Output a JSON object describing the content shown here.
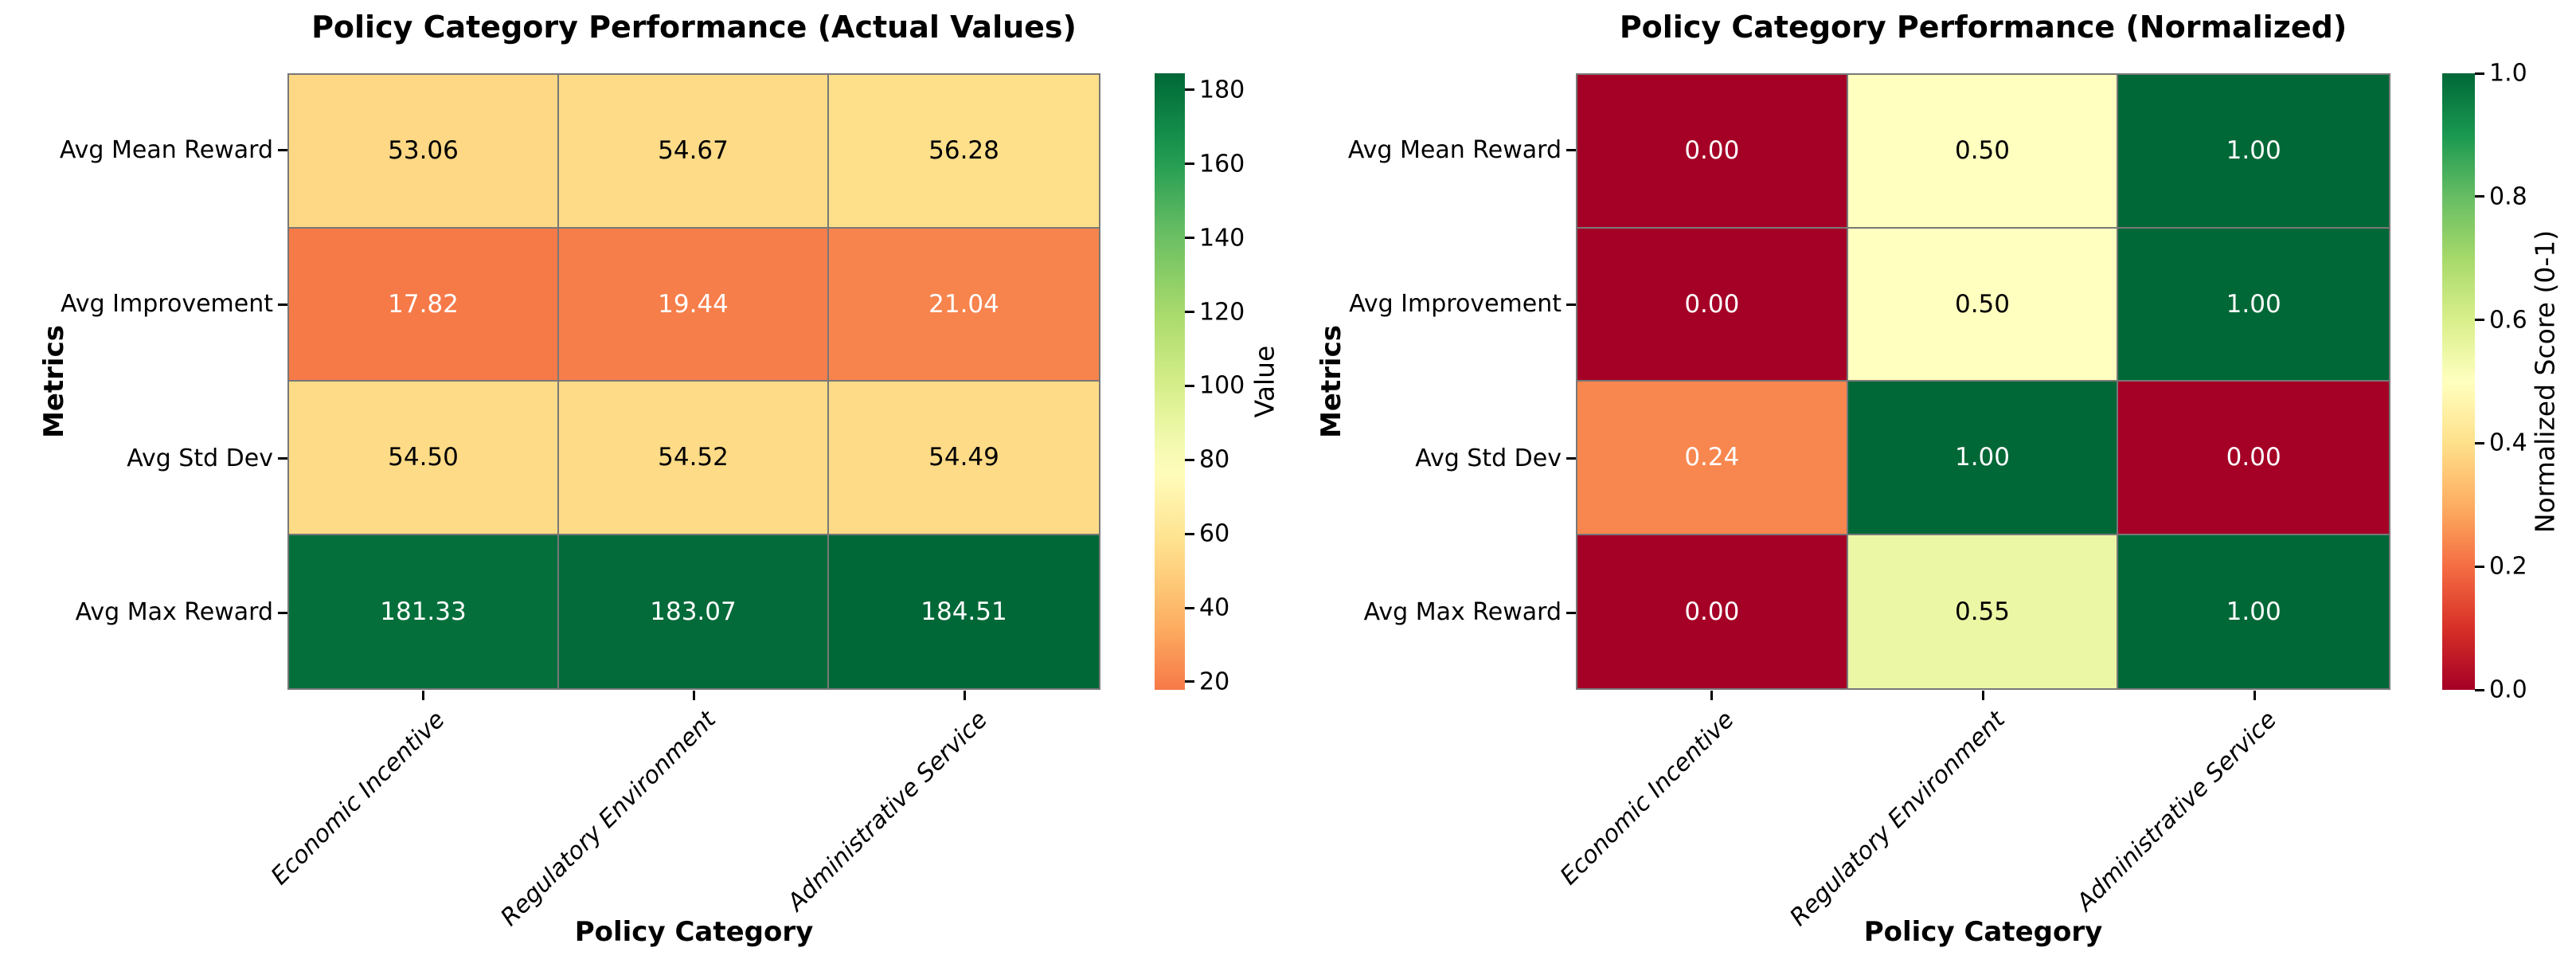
{
  "figure": {
    "background": "#ffffff"
  },
  "chart_data": [
    {
      "type": "heatmap",
      "title": "Policy Category Performance (Actual Values)",
      "xlabel": "Policy Category",
      "ylabel": "Metrics",
      "rows": [
        "Avg Mean Reward",
        "Avg Improvement",
        "Avg Std Dev",
        "Avg Max Reward"
      ],
      "columns": [
        "Economic Incentive",
        "Regulatory Environment",
        "Administrative Service"
      ],
      "values": [
        [
          53.06,
          54.67,
          56.28
        ],
        [
          17.82,
          19.44,
          21.04
        ],
        [
          54.5,
          54.52,
          54.49
        ],
        [
          181.33,
          183.07,
          184.51
        ]
      ],
      "annotation_decimals": 2,
      "colorbar": {
        "label": "Value",
        "ticks": [
          20,
          40,
          60,
          80,
          100,
          120,
          140,
          160,
          180
        ],
        "tick_decimals": 0
      },
      "norm": {
        "vmin": 17.82,
        "vmax": 184.51,
        "cmap_start": 0.218,
        "cmap_end": 1.0
      },
      "colormap": {
        "name": "RdYlGn",
        "stops": [
          "#a50026",
          "#d73027",
          "#f46d43",
          "#fdae61",
          "#fee08b",
          "#ffffbf",
          "#d9ef8b",
          "#a6d96a",
          "#66bd63",
          "#1a9850",
          "#006837"
        ]
      },
      "legend_position": "right",
      "grid": false
    },
    {
      "type": "heatmap",
      "title": "Policy Category Performance (Normalized)",
      "xlabel": "Policy Category",
      "ylabel": "Metrics",
      "rows": [
        "Avg Mean Reward",
        "Avg Improvement",
        "Avg Std Dev",
        "Avg Max Reward"
      ],
      "columns": [
        "Economic Incentive",
        "Regulatory Environment",
        "Administrative Service"
      ],
      "values": [
        [
          0.0,
          0.5,
          1.0
        ],
        [
          0.0,
          0.5,
          1.0
        ],
        [
          0.24,
          1.0,
          0.0
        ],
        [
          0.0,
          0.55,
          1.0
        ]
      ],
      "annotation_decimals": 2,
      "colorbar": {
        "label": "Normalized Score (0-1)",
        "ticks": [
          0.0,
          0.2,
          0.4,
          0.6,
          0.8,
          1.0
        ],
        "tick_decimals": 1
      },
      "norm": {
        "vmin": 0.0,
        "vmax": 1.0,
        "cmap_start": 0.0,
        "cmap_end": 1.0
      },
      "colormap": {
        "name": "RdYlGn",
        "stops": [
          "#a50026",
          "#d73027",
          "#f46d43",
          "#fdae61",
          "#fee08b",
          "#ffffbf",
          "#d9ef8b",
          "#a6d96a",
          "#66bd63",
          "#1a9850",
          "#006837"
        ]
      },
      "legend_position": "right",
      "grid": false
    }
  ]
}
